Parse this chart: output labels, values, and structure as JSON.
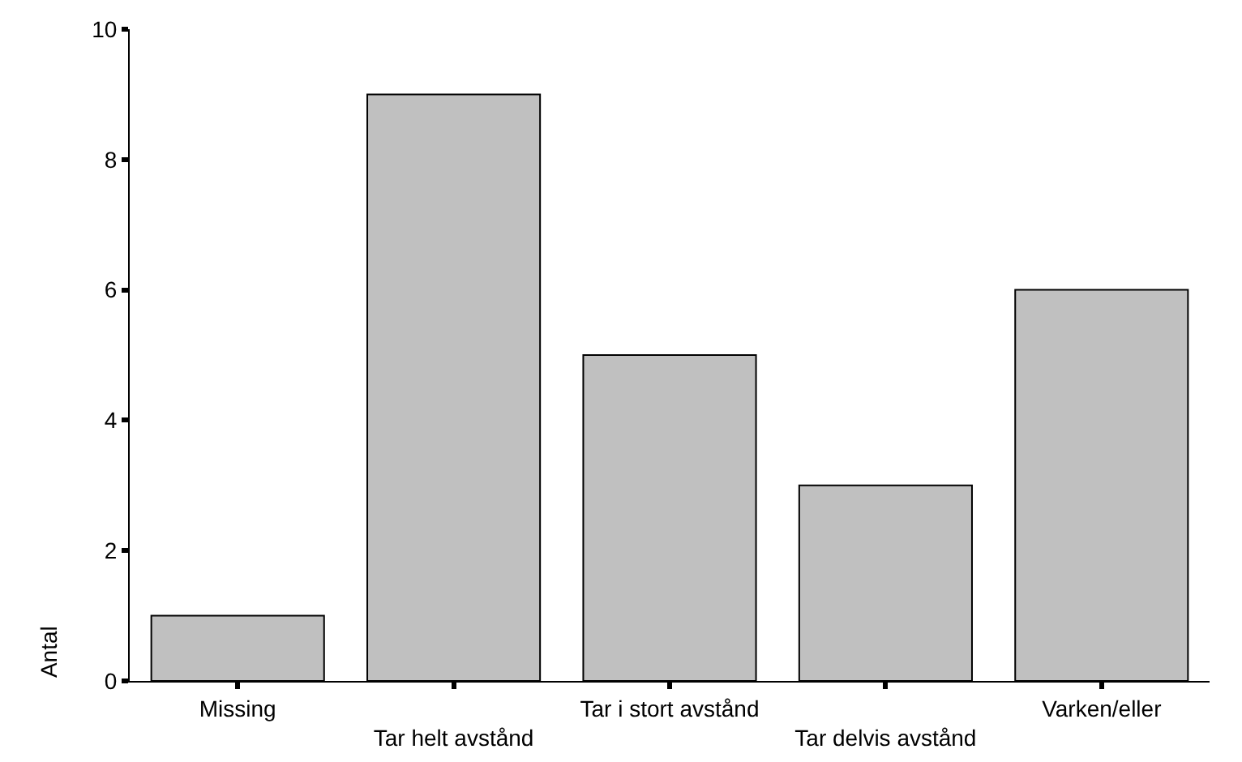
{
  "chart_data": {
    "type": "bar",
    "ylabel": "Antal",
    "categories": [
      "Missing",
      "Tar helt avstånd",
      "Tar i stort avstånd",
      "Tar delvis avstånd",
      "Varken/eller"
    ],
    "values": [
      1,
      9,
      5,
      3,
      6
    ],
    "color": "#c0c0c0",
    "ylim": [
      0,
      10
    ],
    "yticks": [
      0,
      2,
      4,
      6,
      8,
      10
    ],
    "grid": false,
    "legend": false
  }
}
